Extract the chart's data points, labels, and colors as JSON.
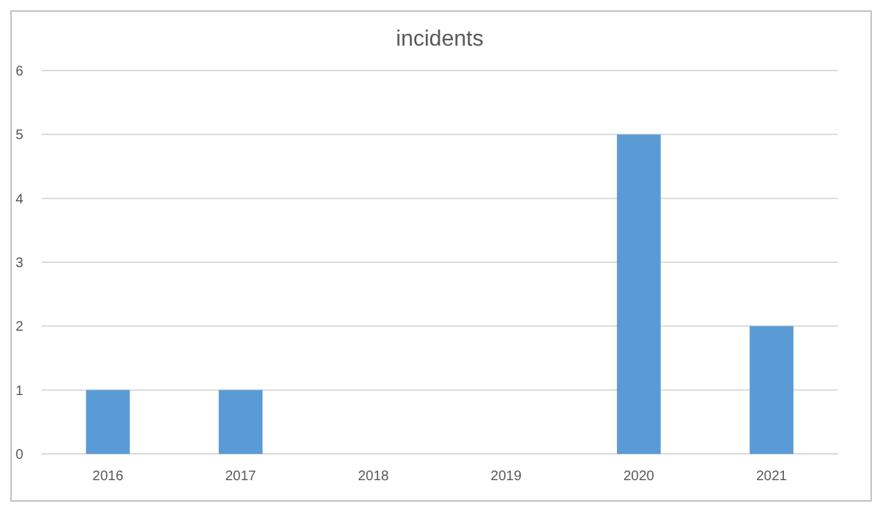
{
  "chart_data": {
    "type": "bar",
    "title": "incidents",
    "categories": [
      "2016",
      "2017",
      "2018",
      "2019",
      "2020",
      "2021"
    ],
    "values": [
      1,
      1,
      0,
      0,
      5,
      2
    ],
    "color": "#5b9bd5",
    "ylim": [
      0,
      6
    ],
    "yticks": [
      0,
      1,
      2,
      3,
      4,
      5,
      6
    ],
    "grid": "y"
  }
}
